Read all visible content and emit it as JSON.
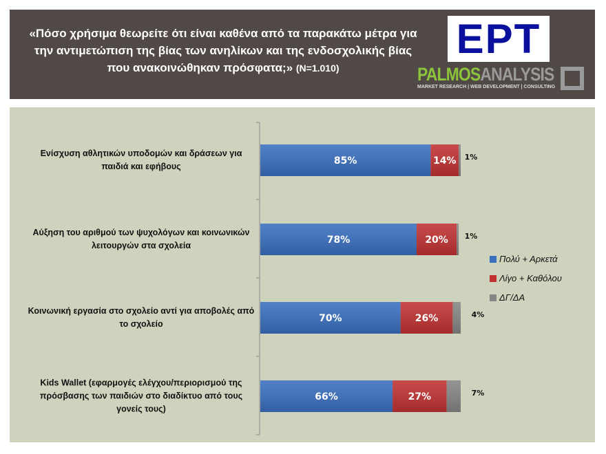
{
  "header": {
    "title": "«Πόσο χρήσιμα θεωρείτε ότι είναι καθένα από τα παρακάτω μέτρα για την αντιμετώπιση της βίας των ανηλίκων και της ενδοσχολικής βίας που ανακοινώθηκαν πρόσφατα;»",
    "sample": "(N=1.010)",
    "logo_ert": "ΕΡΤ",
    "logo_palmos_1": "PALMOS",
    "logo_palmos_2": "ANALYSIS",
    "logo_tagline": "MARKET RESEARCH | WEB DEVELOPMENT | CONSULTING"
  },
  "chart_data": {
    "type": "bar",
    "orientation": "horizontal-stacked",
    "categories": [
      "Ενίσχυση αθλητικών υποδομών και δράσεων για παιδιά και εφήβους",
      "Αύξηση του αριθμού των ψυχολόγων και κοινωνικών λειτουργών στα σχολεία",
      "Κοινωνική εργασία στο σχολείο αντί για αποβολές από το σχολείο",
      "Kids Wallet (εφαρμογές ελέγχου/περιορισμού της πρόσβασης των παιδιών στο διαδίκτυο από τους γονείς τους)"
    ],
    "series": [
      {
        "name": "Πολύ + Αρκετά",
        "values": [
          85,
          78,
          70,
          66
        ],
        "color": "#3a6fbf"
      },
      {
        "name": "Λίγο + Καθόλου",
        "values": [
          14,
          20,
          26,
          27
        ],
        "color": "#c03232"
      },
      {
        "name": "ΔΓ/ΔΑ",
        "values": [
          1,
          1,
          4,
          7
        ],
        "color": "#858585"
      }
    ],
    "value_suffix": "%",
    "xlim": [
      0,
      100
    ],
    "legend": "right",
    "grid": false
  }
}
